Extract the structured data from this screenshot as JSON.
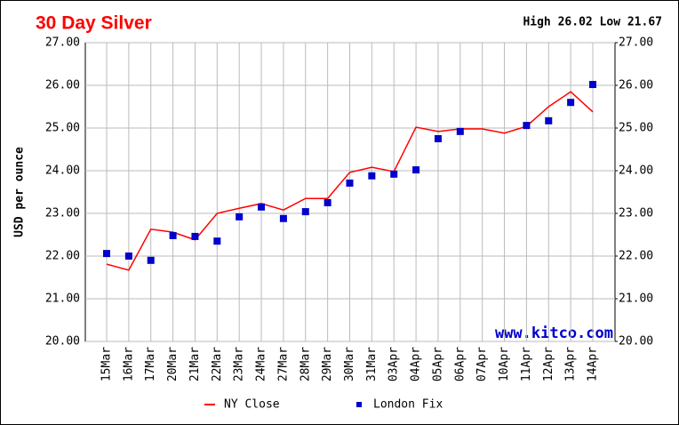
{
  "chart_data": {
    "type": "line",
    "title": "30 Day Silver",
    "subtitle": "High 26.02 Low 21.67",
    "y_label": "USD per ounce",
    "watermark": "www.kitco.com",
    "categories": [
      "15Mar",
      "16Mar",
      "17Mar",
      "20Mar",
      "21Mar",
      "22Mar",
      "23Mar",
      "24Mar",
      "27Mar",
      "28Mar",
      "29Mar",
      "30Mar",
      "31Mar",
      "03Apr",
      "04Apr",
      "05Apr",
      "06Apr",
      "07Apr",
      "10Apr",
      "11Apr",
      "12Apr",
      "13Apr",
      "14Apr"
    ],
    "series": [
      {
        "name": "NY Close",
        "color": "#ff0000",
        "mark": "line",
        "values": [
          21.81,
          21.67,
          22.63,
          22.56,
          22.38,
          23.0,
          23.12,
          23.23,
          23.08,
          23.35,
          23.35,
          23.96,
          24.08,
          23.98,
          25.02,
          24.92,
          24.98,
          24.98,
          24.88,
          25.04,
          25.5,
          25.85,
          25.38
        ]
      },
      {
        "name": "London Fix",
        "color": "#0000cc",
        "mark": "square",
        "values": [
          22.06,
          22.0,
          21.9,
          22.48,
          22.46,
          22.35,
          22.92,
          23.15,
          22.88,
          23.04,
          23.25,
          23.71,
          23.88,
          23.92,
          24.02,
          24.75,
          24.92,
          null,
          null,
          25.06,
          25.17,
          25.6,
          26.02
        ]
      }
    ],
    "ylim": [
      20,
      27
    ],
    "yticks": [
      {
        "value": 20,
        "label": "20.00"
      },
      {
        "value": 21,
        "label": "21.00"
      },
      {
        "value": 22,
        "label": "22.00"
      },
      {
        "value": 23,
        "label": "23.00"
      },
      {
        "value": 24,
        "label": "24.00"
      },
      {
        "value": 25,
        "label": "25.00"
      },
      {
        "value": 26,
        "label": "26.00"
      },
      {
        "value": 27,
        "label": "27.00"
      }
    ],
    "y2lim": [
      20,
      27
    ],
    "y2ticks": [
      {
        "value": 20,
        "label": "20.00"
      },
      {
        "value": 21,
        "label": "21.00"
      },
      {
        "value": 22,
        "label": "22.00"
      },
      {
        "value": 23,
        "label": "23.00"
      },
      {
        "value": 24,
        "label": "24.00"
      },
      {
        "value": 25,
        "label": "25.00"
      },
      {
        "value": 26,
        "label": "26.00"
      },
      {
        "value": 27,
        "label": "27.00"
      }
    ],
    "grid": true
  }
}
